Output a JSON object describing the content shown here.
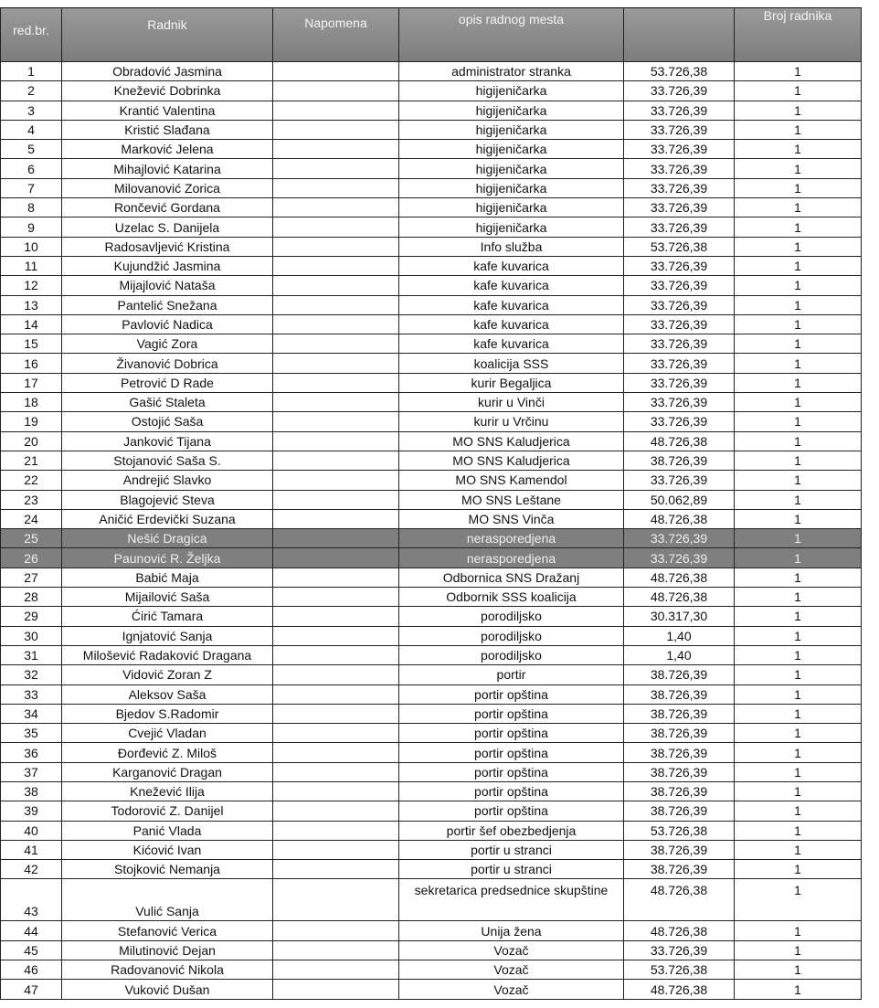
{
  "header": {
    "no": "red.br.",
    "name": "Radnik",
    "note": "Napomena",
    "desc": "opis radnog mesta",
    "amount": "",
    "count": "Broj radnika"
  },
  "colors": {
    "header_bg": "#8a8a8a",
    "highlight_bg": "#7f7f7f"
  },
  "rows": [
    {
      "no": "1",
      "name": "Obradović Jasmina",
      "note": "",
      "desc": "administrator stranka",
      "amount": "53.726,38",
      "count": "1"
    },
    {
      "no": "2",
      "name": "Knežević Dobrinka",
      "note": "",
      "desc": "higijeničarka",
      "amount": "33.726,39",
      "count": "1"
    },
    {
      "no": "3",
      "name": "Krantić Valentina",
      "note": "",
      "desc": "higijeničarka",
      "amount": "33.726,39",
      "count": "1"
    },
    {
      "no": "4",
      "name": "Kristić Slađana",
      "note": "",
      "desc": "higijeničarka",
      "amount": "33.726,39",
      "count": "1"
    },
    {
      "no": "5",
      "name": "Marković Jelena",
      "note": "",
      "desc": "higijeničarka",
      "amount": "33.726,39",
      "count": "1"
    },
    {
      "no": "6",
      "name": "Mihajlović Katarina",
      "note": "",
      "desc": "higijeničarka",
      "amount": "33.726,39",
      "count": "1"
    },
    {
      "no": "7",
      "name": "Milovanović Zorica",
      "note": "",
      "desc": "higijeničarka",
      "amount": "33.726,39",
      "count": "1"
    },
    {
      "no": "8",
      "name": "Rončević Gordana",
      "note": "",
      "desc": "higijeničarka",
      "amount": "33.726,39",
      "count": "1"
    },
    {
      "no": "9",
      "name": "Uzelac S. Danijela",
      "note": "",
      "desc": "higijeničarka",
      "amount": "33.726,39",
      "count": "1"
    },
    {
      "no": "10",
      "name": "Radosavljević Kristina",
      "note": "",
      "desc": "Info služba",
      "amount": "53.726,38",
      "count": "1"
    },
    {
      "no": "11",
      "name": "Kujundžić Jasmina",
      "note": "",
      "desc": "kafe kuvarica",
      "amount": "33.726,39",
      "count": "1"
    },
    {
      "no": "12",
      "name": "Mijajlović Nataša",
      "note": "",
      "desc": "kafe kuvarica",
      "amount": "33.726,39",
      "count": "1"
    },
    {
      "no": "13",
      "name": "Pantelić Snežana",
      "note": "",
      "desc": "kafe kuvarica",
      "amount": "33.726,39",
      "count": "1"
    },
    {
      "no": "14",
      "name": "Pavlović Nadica",
      "note": "",
      "desc": "kafe kuvarica",
      "amount": "33.726,39",
      "count": "1"
    },
    {
      "no": "15",
      "name": "Vagić Zora",
      "note": "",
      "desc": "kafe kuvarica",
      "amount": "33.726,39",
      "count": "1"
    },
    {
      "no": "16",
      "name": "Živanović Dobrica",
      "note": "",
      "desc": "koalicija SSS",
      "amount": "33.726,39",
      "count": "1"
    },
    {
      "no": "17",
      "name": "Petrović D Rade",
      "note": "",
      "desc": "kurir Begaljica",
      "amount": "33.726,39",
      "count": "1"
    },
    {
      "no": "18",
      "name": "Gašić Staleta",
      "note": "",
      "desc": "kurir u Vinči",
      "amount": "33.726,39",
      "count": "1"
    },
    {
      "no": "19",
      "name": "Ostojić Saša",
      "note": "",
      "desc": "kurir u Vrčinu",
      "amount": "33.726,39",
      "count": "1"
    },
    {
      "no": "20",
      "name": "Janković Tijana",
      "note": "",
      "desc": "MO SNS Kaludjerica",
      "amount": "48.726,38",
      "count": "1"
    },
    {
      "no": "21",
      "name": "Stojanović Saša S.",
      "note": "",
      "desc": "MO SNS Kaludjerica",
      "amount": "38.726,39",
      "count": "1"
    },
    {
      "no": "22",
      "name": "Andrejić Slavko",
      "note": "",
      "desc": "MO SNS Kamendol",
      "amount": "33.726,39",
      "count": "1"
    },
    {
      "no": "23",
      "name": "Blagojević Steva",
      "note": "",
      "desc": "MO SNS Leštane",
      "amount": "50.062,89",
      "count": "1"
    },
    {
      "no": "24",
      "name": "Aničić Erdevički Suzana",
      "note": "",
      "desc": "MO SNS Vinča",
      "amount": "48.726,38",
      "count": "1"
    },
    {
      "no": "25",
      "name": "Nešić Dragica",
      "note": "",
      "desc": "nerasporedjena",
      "amount": "33.726,39",
      "count": "1",
      "highlighted": true
    },
    {
      "no": "26",
      "name": "Paunović R. Željka",
      "note": "",
      "desc": "nerasporedjena",
      "amount": "33.726,39",
      "count": "1",
      "highlighted": true
    },
    {
      "no": "27",
      "name": "Babić Maja",
      "note": "",
      "desc": "Odbornica SNS Dražanj",
      "amount": "48.726,38",
      "count": "1"
    },
    {
      "no": "28",
      "name": "Mijailović Saša",
      "note": "",
      "desc": "Odbornik SSS koalicija",
      "amount": "48.726,38",
      "count": "1"
    },
    {
      "no": "29",
      "name": "Ćirić Tamara",
      "note": "",
      "desc": "porodiljsko",
      "amount": "30.317,30",
      "count": "1"
    },
    {
      "no": "30",
      "name": "Ignjatović Sanja",
      "note": "",
      "desc": "porodiljsko",
      "amount": "1,40",
      "count": "1"
    },
    {
      "no": "31",
      "name": "Milošević Radaković Dragana",
      "note": "",
      "desc": "porodiljsko",
      "amount": "1,40",
      "count": "1"
    },
    {
      "no": "32",
      "name": "Vidović Zoran Z",
      "note": "",
      "desc": "portir",
      "amount": "38.726,39",
      "count": "1"
    },
    {
      "no": "33",
      "name": "Aleksov Saša",
      "note": "",
      "desc": "portir opština",
      "amount": "38.726,39",
      "count": "1"
    },
    {
      "no": "34",
      "name": "Bjedov S.Radomir",
      "note": "",
      "desc": "portir opština",
      "amount": "38.726,39",
      "count": "1"
    },
    {
      "no": "35",
      "name": "Cvejić Vladan",
      "note": "",
      "desc": "portir opština",
      "amount": "38.726,39",
      "count": "1"
    },
    {
      "no": "36",
      "name": "Đorđević Z.  Miloš",
      "note": "",
      "desc": "portir opština",
      "amount": "38.726,39",
      "count": "1"
    },
    {
      "no": "37",
      "name": "Karganović Dragan",
      "note": "",
      "desc": "portir opština",
      "amount": "38.726,39",
      "count": "1"
    },
    {
      "no": "38",
      "name": "Knežević Ilija",
      "note": "",
      "desc": "portir opština",
      "amount": "38.726,39",
      "count": "1"
    },
    {
      "no": "39",
      "name": "Todorović Z. Danijel",
      "note": "",
      "desc": "portir opština",
      "amount": "38.726,39",
      "count": "1"
    },
    {
      "no": "40",
      "name": "Panić Vlada",
      "note": "",
      "desc": "portir šef obezbedjenja",
      "amount": "53.726,38",
      "count": "1"
    },
    {
      "no": "41",
      "name": "Kićović Ivan",
      "note": "",
      "desc": "portir u stranci",
      "amount": "38.726,39",
      "count": "1"
    },
    {
      "no": "42",
      "name": "Stojković Nemanja",
      "note": "",
      "desc": "portir u stranci",
      "amount": "38.726,39",
      "count": "1"
    },
    {
      "no": "43",
      "name": "Vulić Sanja",
      "note": "",
      "desc": "sekretarica predsednice skupštine",
      "amount": "48.726,38",
      "count": "1",
      "tall": true
    },
    {
      "no": "44",
      "name": "Stefanović Verica",
      "note": "",
      "desc": "Unija žena",
      "amount": "48.726,38",
      "count": "1"
    },
    {
      "no": "45",
      "name": "Milutinović Dejan",
      "note": "",
      "desc": "Vozač",
      "amount": "33.726,39",
      "count": "1"
    },
    {
      "no": "46",
      "name": "Radovanović Nikola",
      "note": "",
      "desc": "Vozač",
      "amount": "53.726,38",
      "count": "1"
    },
    {
      "no": "47",
      "name": "Vuković Dušan",
      "note": "",
      "desc": "Vozač",
      "amount": "48.726,38",
      "count": "1"
    }
  ]
}
